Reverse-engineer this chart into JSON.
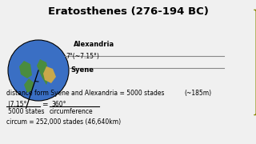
{
  "title": "Eratosthenes (276-194 BC)",
  "bg_color": "#f0f0f0",
  "title_fontsize": 9.5,
  "sun_color": "#FFE000",
  "earth_blue": "#3a6fc4",
  "earth_green": "#4a8c3f",
  "earth_brown": "#c8a84b",
  "alexandria_label": "Alexandria",
  "syene_label": "Syene",
  "angle_label": "7°(~7.15°)",
  "line1": "distance form Syene and Alexandria = 5000 stades",
  "line2_left_num": "|7.15°",
  "line2_left_den": "5000 states",
  "line2_eq": "=",
  "line2_right_num": "360°",
  "line2_right_den": "circumference",
  "line3": "circum = 252,000 stades (46,640km)",
  "aside": "(~185m)",
  "text_fontsize": 6.0,
  "small_fontsize": 5.5
}
